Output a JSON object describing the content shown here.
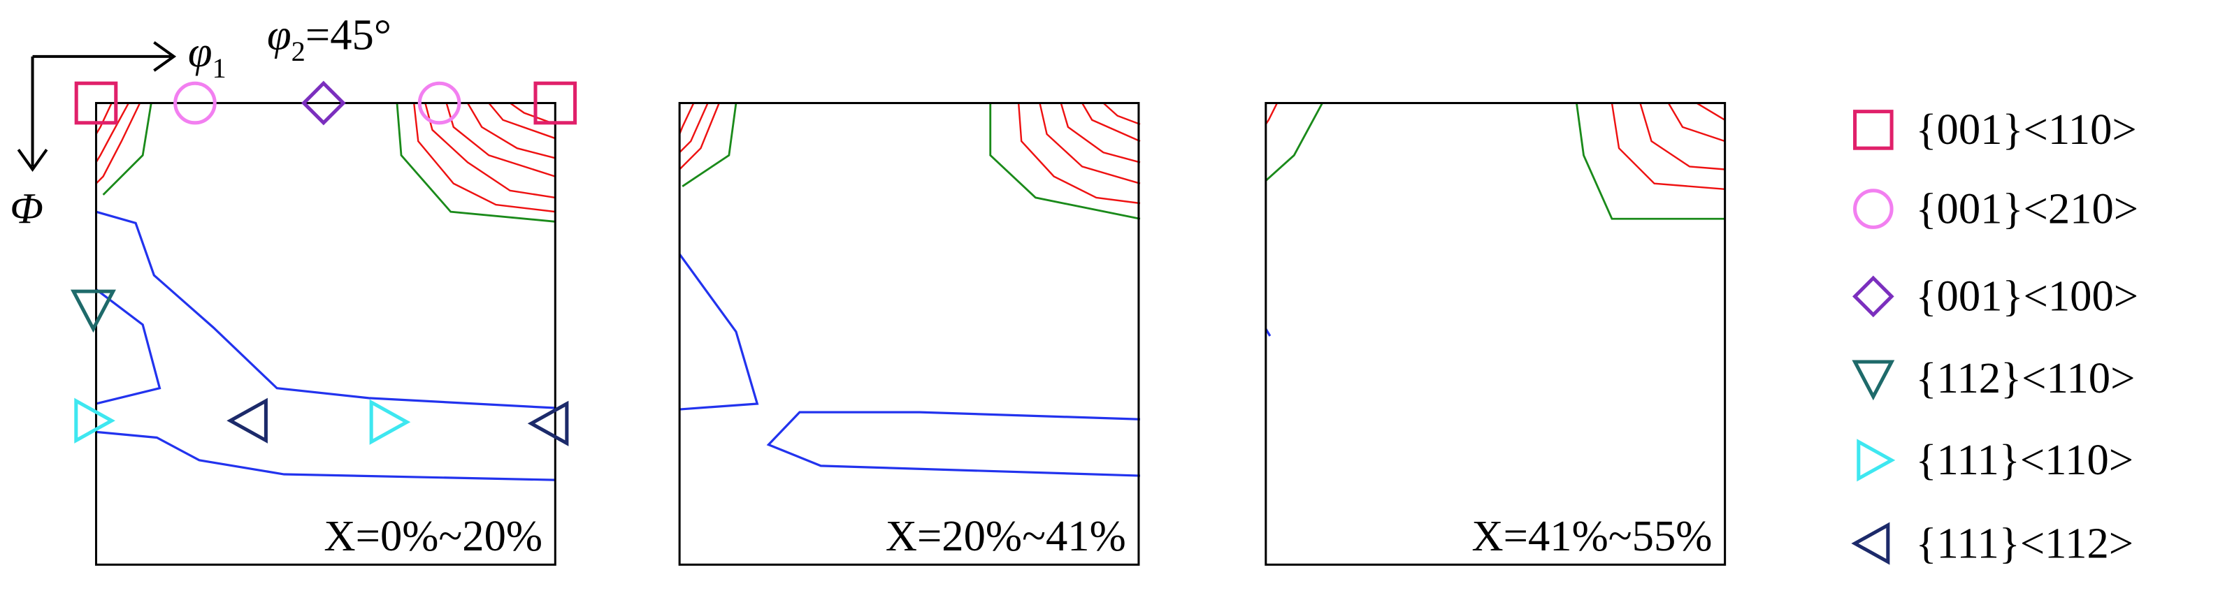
{
  "axes": {
    "x_symbol": "φ",
    "x_subscript": "1",
    "section_symbol": "φ",
    "section_subscript": "2",
    "section_value": "=45°",
    "y_symbol": "Φ"
  },
  "panels": [
    {
      "label": "X=0%~20%"
    },
    {
      "label": "X=20%~41%"
    },
    {
      "label": "X=41%~55%"
    }
  ],
  "legend": [
    {
      "label": "{001}<110>",
      "color": "#e0206a",
      "marker": "square"
    },
    {
      "label": "{001}<210>",
      "color": "#f27ff0",
      "marker": "circle"
    },
    {
      "label": "{001}<100>",
      "color": "#7b2fbe",
      "marker": "diamond"
    },
    {
      "label": "{112}<110>",
      "color": "#1e6a6a",
      "marker": "down"
    },
    {
      "label": "{111}<110>",
      "color": "#3ee7f0",
      "marker": "right"
    },
    {
      "label": "{111}<112>",
      "color": "#1c2a6a",
      "marker": "left"
    }
  ]
}
